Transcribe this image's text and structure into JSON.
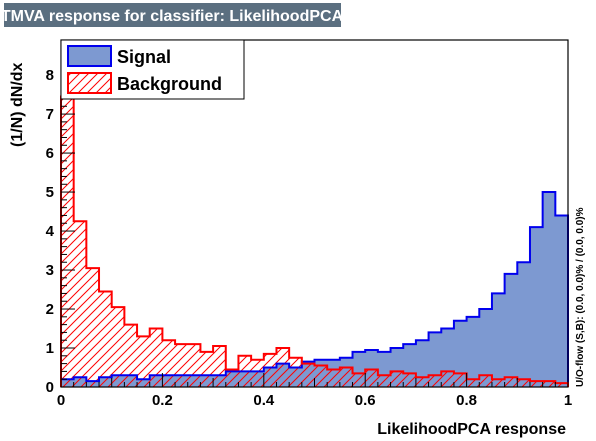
{
  "title": "TMVA response for classifier: LikelihoodPCA",
  "chart_data": {
    "type": "histogram",
    "title": "TMVA response for classifier: LikelihoodPCA",
    "xlabel": "LikelihoodPCA response",
    "ylabel": "(1/N) dN/dx",
    "xlim": [
      0,
      1
    ],
    "ylim": [
      0,
      8.9
    ],
    "xticks": [
      "0",
      "0.2",
      "0.4",
      "0.6",
      "0.8",
      "1"
    ],
    "yticks": [
      "0",
      "1",
      "2",
      "3",
      "4",
      "5",
      "6",
      "7",
      "8"
    ],
    "overflow_label": "U/O-flow (S,B): (0.0, 0.0)% / (0.0, 0.0)%",
    "bin_width": 0.025,
    "series": [
      {
        "name": "Signal",
        "fill": "#7d99d1",
        "line": "#0000ee",
        "values": [
          0.2,
          0.25,
          0.15,
          0.25,
          0.3,
          0.3,
          0.2,
          0.3,
          0.3,
          0.3,
          0.3,
          0.3,
          0.3,
          0.4,
          0.4,
          0.4,
          0.5,
          0.6,
          0.5,
          0.65,
          0.7,
          0.7,
          0.75,
          0.9,
          0.95,
          0.9,
          1.0,
          1.1,
          1.2,
          1.4,
          1.5,
          1.7,
          1.8,
          2.0,
          2.4,
          2.9,
          3.2,
          4.1,
          5.0,
          4.4
        ]
      },
      {
        "name": "Background",
        "fill": "none",
        "line": "#ff0000",
        "hatch": true,
        "values": [
          7.45,
          4.25,
          3.05,
          2.45,
          2.05,
          1.6,
          1.3,
          1.5,
          1.2,
          1.1,
          1.1,
          0.9,
          1.05,
          0.45,
          0.8,
          0.7,
          0.85,
          1.0,
          0.75,
          0.6,
          0.55,
          0.45,
          0.5,
          0.35,
          0.45,
          0.3,
          0.4,
          0.35,
          0.25,
          0.3,
          0.4,
          0.35,
          0.2,
          0.3,
          0.2,
          0.25,
          0.2,
          0.15,
          0.15,
          0.1
        ]
      }
    ]
  }
}
